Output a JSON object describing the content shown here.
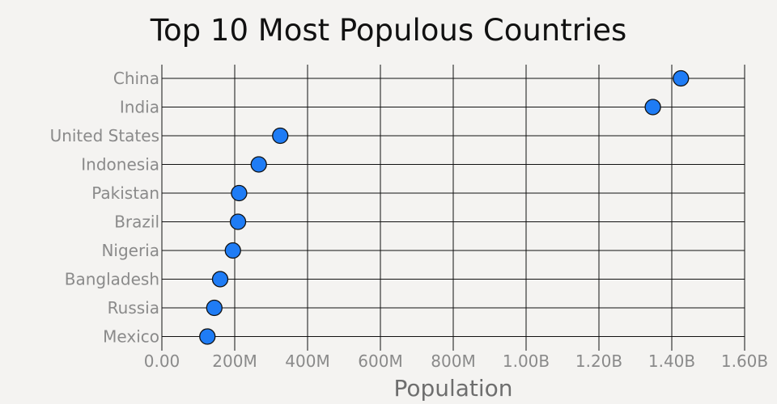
{
  "chart_data": {
    "type": "scatter",
    "title": "Top 10 Most Populous Countries",
    "xlabel": "Population",
    "ylabel": "",
    "xlim": [
      0,
      1600000000
    ],
    "x_ticks": [
      0,
      200000000,
      400000000,
      600000000,
      800000000,
      1000000000,
      1200000000,
      1400000000,
      1600000000
    ],
    "x_tick_labels": [
      "0.00",
      "200M",
      "400M",
      "600M",
      "800M",
      "1.00B",
      "1.20B",
      "1.40B",
      "1.60B"
    ],
    "categories": [
      "China",
      "India",
      "United States",
      "Indonesia",
      "Pakistan",
      "Brazil",
      "Nigeria",
      "Bangladesh",
      "Russia",
      "Mexico"
    ],
    "values": [
      1425000000,
      1348000000,
      325000000,
      266000000,
      212000000,
      209000000,
      195000000,
      160000000,
      144000000,
      125000000
    ],
    "marker_color": "#1f7cf5",
    "grid": true
  }
}
